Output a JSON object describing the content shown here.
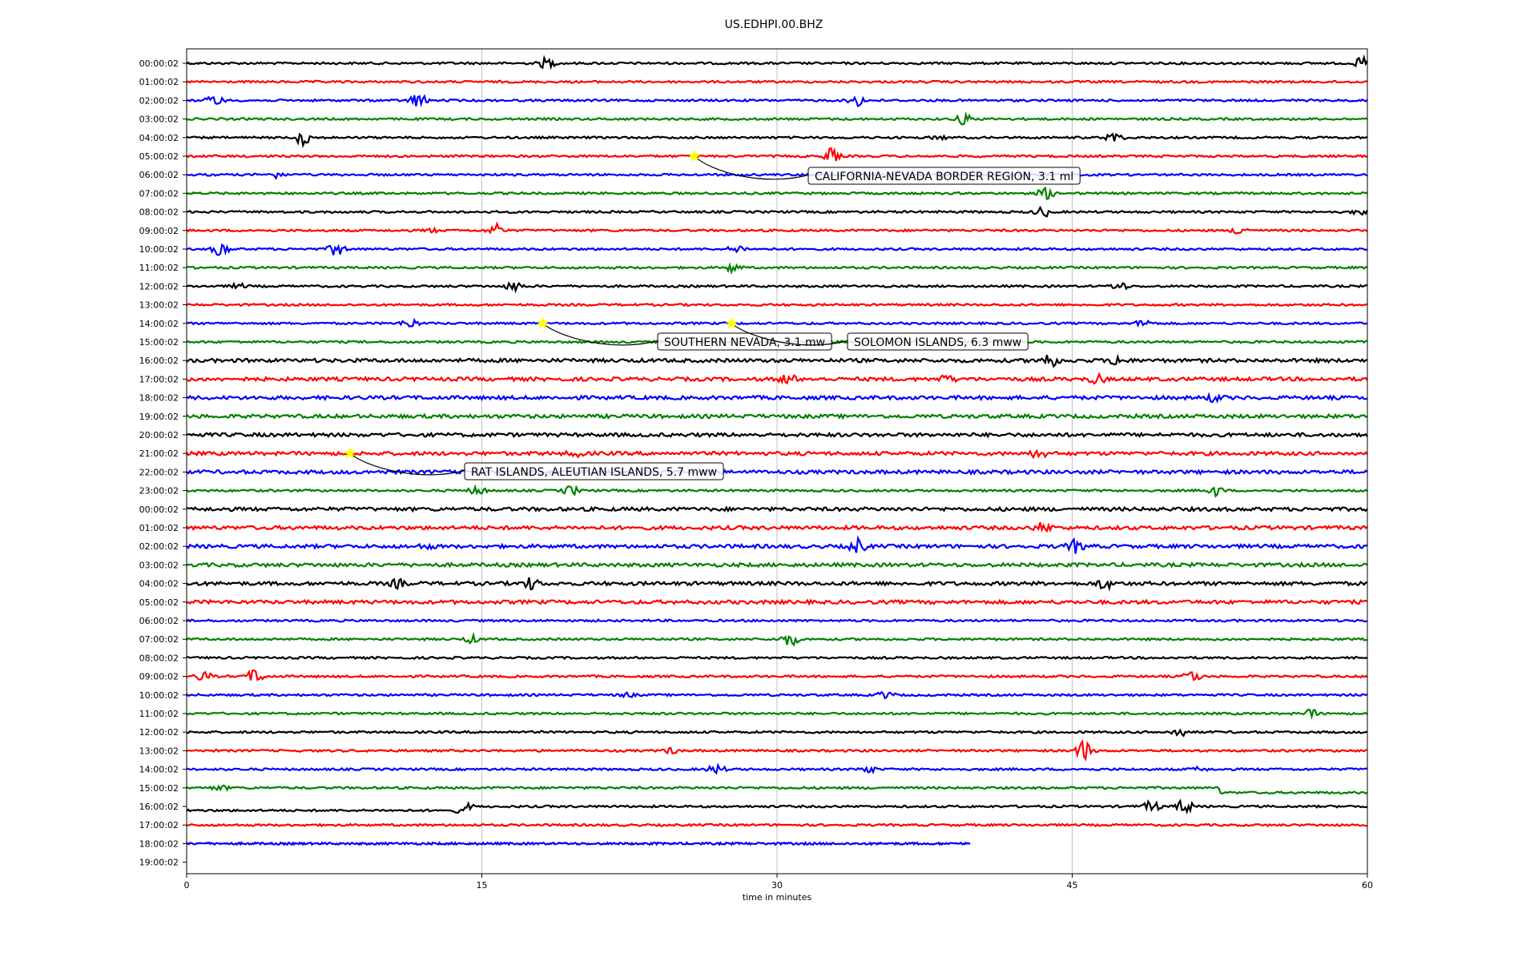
{
  "chart_data": {
    "type": "line",
    "title": "US.EDHPI.00.BHZ",
    "xlabel": "time in minutes",
    "ylabel": "",
    "xlim": [
      0,
      60
    ],
    "xticks": [
      "0",
      "15",
      "30",
      "45",
      "60"
    ],
    "xtick_values": [
      0,
      15,
      30,
      45,
      60
    ],
    "grid": "vertical lines at 15, 30, 45",
    "row_labels": [
      "00:00:02",
      "01:00:02",
      "02:00:02",
      "03:00:02",
      "04:00:02",
      "05:00:02",
      "06:00:02",
      "07:00:02",
      "08:00:02",
      "09:00:02",
      "10:00:02",
      "11:00:02",
      "12:00:02",
      "13:00:02",
      "14:00:02",
      "15:00:02",
      "16:00:02",
      "17:00:02",
      "18:00:02",
      "19:00:02",
      "20:00:02",
      "21:00:02",
      "22:00:02",
      "23:00:02",
      "00:00:02",
      "01:00:02",
      "02:00:02",
      "03:00:02",
      "04:00:02",
      "05:00:02",
      "06:00:02",
      "07:00:02",
      "08:00:02",
      "09:00:02",
      "10:00:02",
      "11:00:02",
      "12:00:02",
      "13:00:02",
      "14:00:02",
      "15:00:02",
      "16:00:02",
      "17:00:02",
      "18:00:02",
      "19:00:02"
    ],
    "colors": [
      "#000000",
      "#ff0000",
      "#0000ff",
      "#008000"
    ],
    "trace_count": 43,
    "last_trace_end_min": 39.8,
    "events": [
      {
        "row": 5,
        "minute": 25.8,
        "label": "CALIFORNIA-NEVADA BORDER REGION, 3.1 ml"
      },
      {
        "row": 14,
        "minute": 18.1,
        "label": "SOUTHERN NEVADA, 3.1 mw"
      },
      {
        "row": 14,
        "minute": 27.7,
        "label": "SOLOMON ISLANDS, 6.3 mww"
      },
      {
        "row": 21,
        "minute": 8.3,
        "label": "RAT ISLANDS, ALEUTIAN ISLANDS, 5.7 mww"
      }
    ],
    "event_marker_color": "#ffff00"
  }
}
